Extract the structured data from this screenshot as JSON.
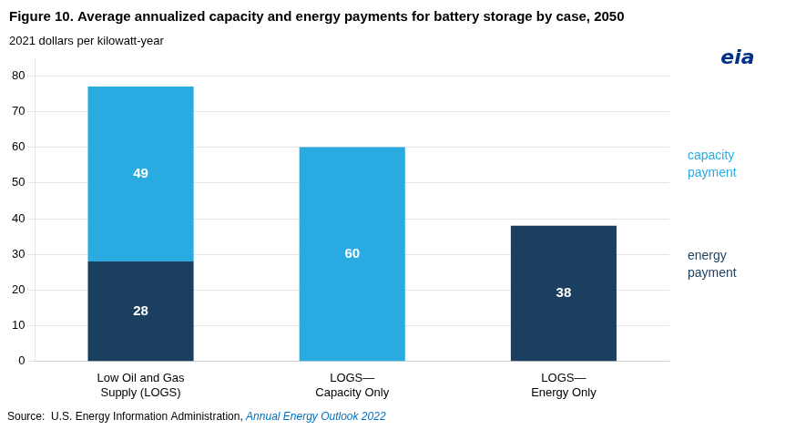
{
  "chart_data": {
    "type": "bar",
    "title": "Figure 10. Average annualized capacity and energy payments for battery storage by case, 2050",
    "ylabel": "2021 dollars per kilowatt-year",
    "categories": [
      "Low Oil and Gas\nSupply (LOGS)",
      "LOGS—\nCapacity Only",
      "LOGS—\nEnergy Only"
    ],
    "series": [
      {
        "name": "energy\npayment",
        "color": "#1b3f5e",
        "values": [
          28,
          0,
          38
        ]
      },
      {
        "name": "capacity\npayment",
        "color": "#29abe2",
        "values": [
          49,
          60,
          0
        ]
      }
    ],
    "stacked": true,
    "data_labels": true,
    "ylim": [
      0,
      85
    ],
    "yticks": [
      0,
      10,
      20,
      30,
      40,
      50,
      60,
      70,
      80
    ],
    "grid": true,
    "legend": "right",
    "annotations": [
      {
        "text": "Source:  U.S. Energy Information Administration, "
      },
      {
        "text": "Annual Energy Outlook 2022",
        "color": "#0070c0"
      },
      {
        "text": "eia",
        "color": "#003087"
      }
    ]
  }
}
